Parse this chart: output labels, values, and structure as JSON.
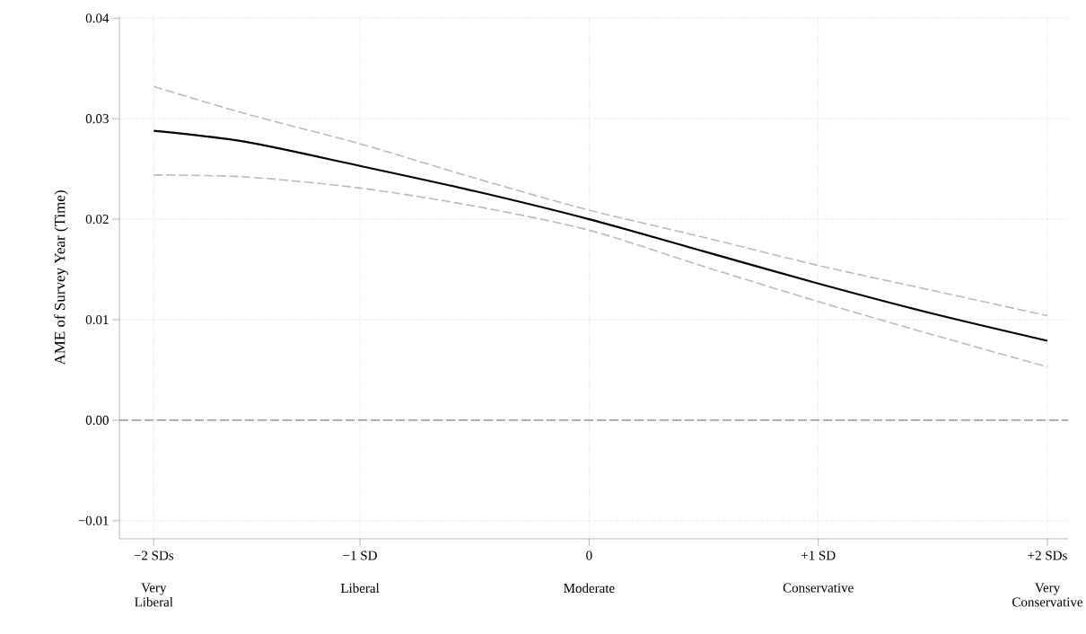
{
  "chart_data": {
    "type": "line",
    "ylabel": "AME of Survey Year (Time)",
    "xlim": [
      -2.05,
      2.09
    ],
    "ylim": [
      -0.0118,
      0.0402
    ],
    "xticks": [
      {
        "value": -1.9,
        "label": "−2 SDs"
      },
      {
        "value": -1,
        "label": "−1 SD"
      },
      0,
      {
        "value": 1,
        "label": "+1 SD"
      },
      {
        "value": 2,
        "label": "+2 SDs"
      }
    ],
    "yticks": [
      {
        "value": -0.01,
        "label": "−0.01"
      },
      {
        "value": 0,
        "label": "0.00"
      },
      0.01,
      0.02,
      0.03,
      0.04
    ],
    "annotations": [
      "Very Liberal",
      "Liberal",
      "Moderate",
      "Conservative",
      "Very Conservative"
    ],
    "grid": true,
    "marker": "none",
    "ref_lines": [
      {
        "axis": "y",
        "value": 0,
        "color": "#555555",
        "line_style": "dashed"
      }
    ],
    "series": [
      {
        "color": "#bbbbbb",
        "line_style": "dashed",
        "x": [
          -1.9,
          -1.5,
          -1,
          -0.5,
          0,
          0.5,
          1,
          1.5,
          2
        ],
        "values": [
          0.0332,
          0.0305,
          0.0275,
          0.0241,
          0.0209,
          0.0182,
          0.0154,
          0.0129,
          0.0104
        ]
      },
      {
        "color": "#bbbbbb",
        "line_style": "dashed",
        "x": [
          -1.9,
          -1.5,
          -1,
          -0.5,
          0,
          0.5,
          1,
          1.5,
          2
        ],
        "values": [
          0.0244,
          0.0242,
          0.0231,
          0.0213,
          0.0189,
          0.0153,
          0.0118,
          0.0085,
          0.0053
        ]
      },
      {
        "color": "#000000",
        "line_style": "solid",
        "x": [
          -1.9,
          -1.5,
          -1,
          -0.5,
          0,
          0.5,
          1,
          1.5,
          2
        ],
        "values": [
          0.0288,
          0.0277,
          0.0253,
          0.0228,
          0.02,
          0.0168,
          0.0136,
          0.0106,
          0.0079
        ]
      }
    ]
  }
}
